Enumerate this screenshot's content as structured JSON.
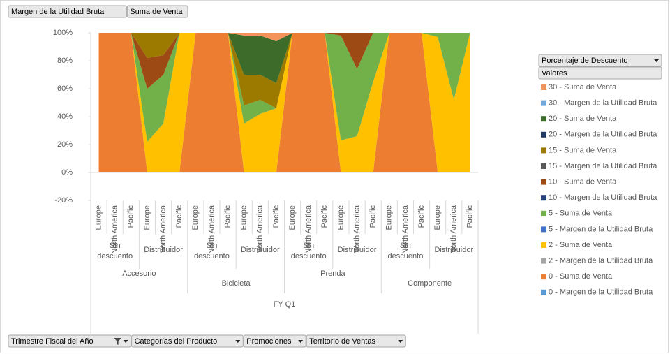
{
  "chart_data": {
    "type": "stacked_area_100",
    "ylim": [
      -20,
      100
    ],
    "yticks": [
      {
        "value": -20,
        "label": "-20%"
      },
      {
        "value": 0,
        "label": "0%"
      },
      {
        "value": 20,
        "label": "20%"
      },
      {
        "value": 40,
        "label": "40%"
      },
      {
        "value": 60,
        "label": "60%"
      },
      {
        "value": 80,
        "label": "80%"
      },
      {
        "value": 100,
        "label": "100%"
      }
    ],
    "categories": [
      "Europe",
      "North America",
      "Pacific",
      "Europe",
      "North America",
      "Pacific",
      "Europe",
      "North America",
      "Pacific",
      "Europe",
      "North America",
      "Pacific",
      "Europe",
      "North America",
      "Pacific",
      "Europe",
      "North America",
      "Pacific",
      "Europe",
      "North America",
      "Pacific",
      "Europe",
      "North America",
      "Pacific"
    ],
    "groups": [
      {
        "name": "Accesorio",
        "subgroups": [
          "Sin descuento",
          "Distribuidor"
        ]
      },
      {
        "name": "Bicicleta",
        "subgroups": [
          "Sin descuento",
          "Distribuidor"
        ]
      },
      {
        "name": "Prenda",
        "subgroups": [
          "Sin descuento",
          "Distribuidor"
        ]
      },
      {
        "name": "Componente",
        "subgroups": [
          "Sin descuento",
          "Distribuidor"
        ]
      }
    ],
    "top_category": "FY Q1",
    "legend_title": "Porcentaje de Descuento",
    "legend_subtitle": "Valores",
    "series": [
      {
        "name": "30 - Suma de Venta",
        "color": "#f4945c",
        "values": [
          0,
          0,
          0,
          0,
          0,
          0,
          0,
          0,
          0,
          2,
          2,
          6,
          0,
          0,
          0,
          0,
          0,
          0,
          0,
          0,
          0,
          0,
          0,
          0
        ]
      },
      {
        "name": "30 - Margen de la Utilidad Bruta",
        "color": "#6fa8dc",
        "values": [
          0,
          0,
          0,
          0,
          0,
          0,
          0,
          0,
          0,
          0,
          0,
          0,
          0,
          0,
          0,
          0,
          0,
          0,
          0,
          0,
          0,
          0,
          0,
          0
        ]
      },
      {
        "name": "20 - Suma de Venta",
        "color": "#3d6b2a",
        "values": [
          0,
          0,
          0,
          0,
          0,
          0,
          0,
          0,
          0,
          28,
          28,
          30,
          0,
          0,
          0,
          0,
          0,
          0,
          0,
          0,
          0,
          0,
          0,
          0
        ]
      },
      {
        "name": "20 - Margen de la Utilidad Bruta",
        "color": "#1f3864",
        "values": [
          0,
          0,
          0,
          0,
          0,
          0,
          0,
          0,
          0,
          0,
          0,
          0,
          0,
          0,
          0,
          0,
          0,
          0,
          0,
          0,
          0,
          0,
          0,
          0
        ]
      },
      {
        "name": "15 - Suma de Venta",
        "color": "#9c7a00",
        "values": [
          0,
          0,
          0,
          18,
          16,
          0,
          0,
          0,
          0,
          22,
          18,
          18,
          0,
          0,
          0,
          0,
          0,
          0,
          0,
          0,
          0,
          0,
          0,
          0
        ]
      },
      {
        "name": "15 - Margen de la Utilidad Bruta",
        "color": "#5a5a5a",
        "values": [
          0,
          0,
          0,
          0,
          0,
          0,
          0,
          0,
          0,
          0,
          0,
          0,
          0,
          0,
          0,
          0,
          0,
          0,
          0,
          0,
          0,
          0,
          0,
          0
        ]
      },
      {
        "name": "10 - Suma de Venta",
        "color": "#9e4a14",
        "values": [
          0,
          0,
          0,
          22,
          14,
          0,
          0,
          0,
          0,
          0,
          0,
          0,
          0,
          0,
          0,
          2,
          26,
          0,
          0,
          0,
          0,
          0,
          0,
          0
        ]
      },
      {
        "name": "10 - Margen de la Utilidad Bruta",
        "color": "#264478",
        "values": [
          0,
          0,
          0,
          0,
          0,
          0,
          0,
          0,
          0,
          0,
          0,
          0,
          0,
          0,
          0,
          0,
          0,
          0,
          0,
          0,
          0,
          0,
          0,
          0
        ]
      },
      {
        "name": "5 - Suma de Venta",
        "color": "#72b04a",
        "values": [
          0,
          0,
          0,
          38,
          35,
          0,
          0,
          0,
          0,
          13,
          10,
          0,
          0,
          0,
          0,
          75,
          48,
          35,
          0,
          0,
          0,
          3,
          48,
          0
        ]
      },
      {
        "name": "5 - Margen de la Utilidad Bruta",
        "color": "#4472c4",
        "values": [
          0,
          0,
          0,
          0,
          0,
          0,
          0,
          0,
          0,
          0,
          0,
          0,
          0,
          0,
          0,
          0,
          0,
          0,
          0,
          0,
          0,
          0,
          0,
          0
        ]
      },
      {
        "name": "2 - Suma de Venta",
        "color": "#ffc000",
        "values": [
          0,
          0,
          0,
          22,
          35,
          100,
          0,
          0,
          0,
          35,
          42,
          46,
          0,
          0,
          0,
          23,
          26,
          65,
          0,
          0,
          0,
          97,
          52,
          100
        ]
      },
      {
        "name": "2 - Margen de la Utilidad Bruta",
        "color": "#a5a5a5",
        "values": [
          0,
          0,
          0,
          0,
          0,
          0,
          0,
          0,
          0,
          0,
          0,
          0,
          0,
          0,
          0,
          0,
          0,
          0,
          0,
          0,
          0,
          0,
          0,
          0
        ]
      },
      {
        "name": "0 - Suma de Venta",
        "color": "#ed7d31",
        "values": [
          100,
          100,
          100,
          0,
          0,
          0,
          100,
          100,
          100,
          0,
          0,
          0,
          100,
          100,
          100,
          0,
          0,
          0,
          100,
          100,
          100,
          0,
          0,
          0
        ]
      },
      {
        "name": "0 - Margen de la Utilidad Bruta",
        "color": "#5b9bd5",
        "values": [
          0,
          0,
          0,
          0,
          0,
          0,
          0,
          0,
          0,
          0,
          0,
          0,
          0,
          0,
          0,
          0,
          0,
          0,
          0,
          0,
          0,
          0,
          0,
          0
        ]
      }
    ]
  },
  "ui": {
    "value_buttons": [
      "Margen de la Utilidad Bruta",
      "Suma de Venta"
    ],
    "axis_buttons": [
      "Trimestre Fiscal del Año",
      "Categorías del Producto",
      "Promociones",
      "Territorio de Ventas"
    ]
  }
}
